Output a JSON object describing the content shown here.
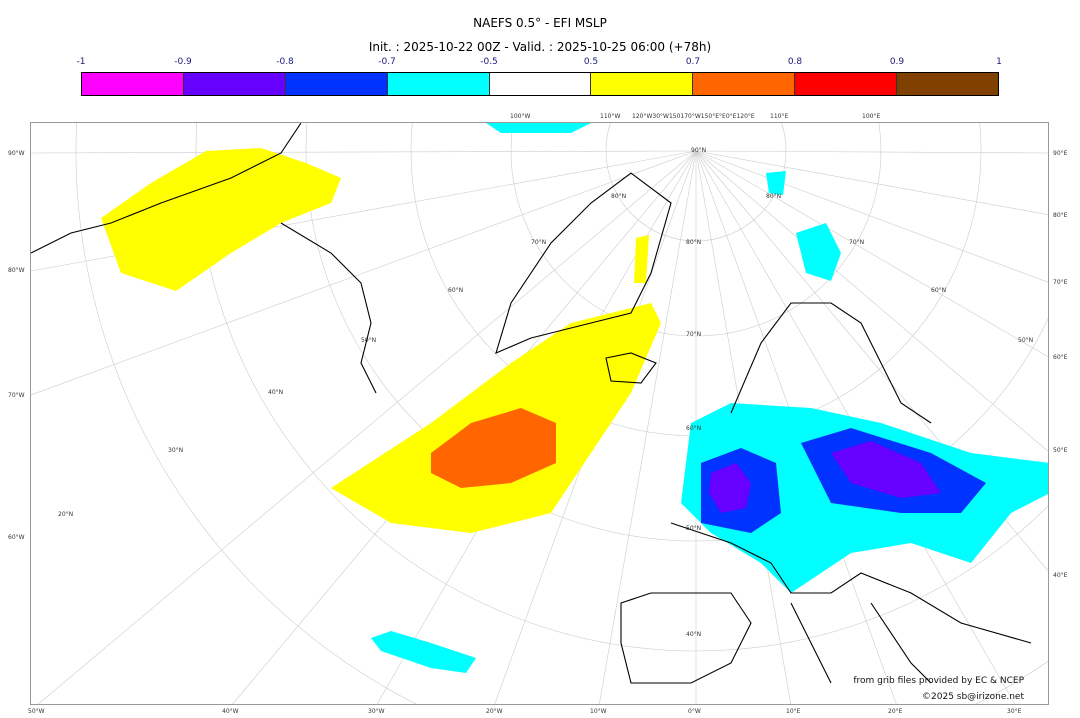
{
  "title": "NAEFS 0.5° - EFI MSLP",
  "subtitle": "Init. : 2025-10-22 00Z - Valid. : 2025-10-25 06:00 (+78h)",
  "colorbar": {
    "ticks": [
      "-1",
      "-0.9",
      "-0.8",
      "-0.7",
      "-0.5",
      "0.5",
      "0.7",
      "0.8",
      "0.9",
      "1"
    ],
    "colors": [
      "#ff00ff",
      "#6600ff",
      "#0033ff",
      "#00ffff",
      "#ffffff",
      "#ffff00",
      "#ff6600",
      "#ff0000",
      "#804000"
    ]
  },
  "axes": {
    "bottom": [
      "50°W",
      "40°W",
      "30°W",
      "20°W",
      "10°W",
      "0°W",
      "10°E",
      "20°E",
      "30°E"
    ],
    "left": [
      "90°W",
      "80°W",
      "70°W",
      "60°W"
    ],
    "right": [
      "90°E",
      "80°E",
      "70°E",
      "60°E",
      "50°E",
      "40°E"
    ],
    "top": [
      "100°W",
      "110°W",
      "120°W30°W150170°W150°E°E0°E120°E",
      "110°E",
      "100°E"
    ],
    "lat_labels": [
      "90°N",
      "80°N",
      "70°N",
      "60°N",
      "50°N",
      "40°N",
      "80°N",
      "70°N",
      "60°N",
      "50°N",
      "40°N",
      "30°N",
      "20°N",
      "60°N",
      "70°N",
      "80°N",
      "50°N"
    ]
  },
  "credits": {
    "source": "from grib files provided by EC & NCEP",
    "copyright": "©2025 sb@irizone.net"
  }
}
